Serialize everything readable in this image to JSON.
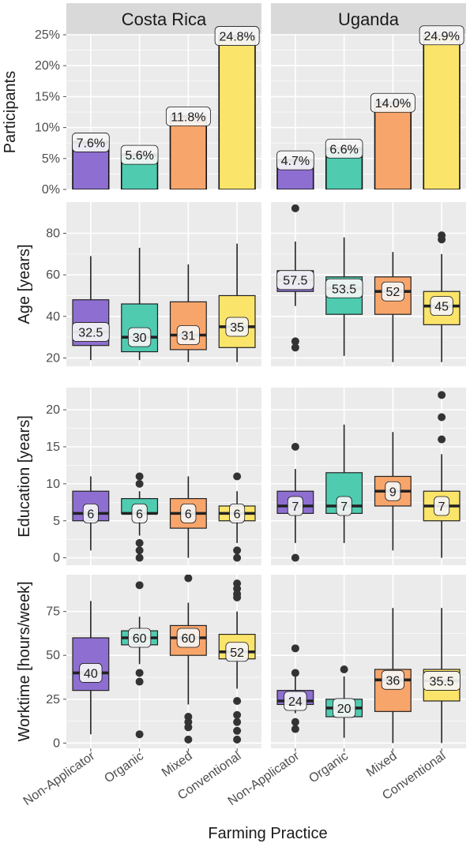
{
  "chart_data": {
    "type": "bar+box",
    "xlabel": "Farming Practice",
    "categories": [
      "Non-Applicator",
      "Organic",
      "Mixed",
      "Conventional"
    ],
    "facets": [
      "Costa Rica",
      "Uganda"
    ],
    "colors": [
      "#8e6fd1",
      "#4fcbb0",
      "#f8a56b",
      "#fbe46a"
    ],
    "rows": [
      {
        "id": "participants",
        "type": "bar",
        "ylabel": "Participants",
        "ylim": [
          0,
          25
        ],
        "yticks": [
          0,
          5,
          10,
          15,
          20,
          25
        ],
        "ytick_labels": [
          "0%",
          "5%",
          "10%",
          "15%",
          "20%",
          "25%"
        ],
        "facets": [
          {
            "name": "Costa Rica",
            "values": [
              7.6,
              5.6,
              11.8,
              24.8
            ],
            "labels": [
              "7.6%",
              "5.6%",
              "11.8%",
              "24.8%"
            ]
          },
          {
            "name": "Uganda",
            "values": [
              4.7,
              6.6,
              14.0,
              24.9
            ],
            "labels": [
              "4.7%",
              "6.6%",
              "14.0%",
              "24.9%"
            ]
          }
        ]
      },
      {
        "id": "age",
        "type": "box",
        "ylabel": "Age [years]",
        "ylim": [
          16,
          95
        ],
        "yticks": [
          20,
          40,
          60,
          80
        ],
        "ytick_labels": [
          "20",
          "40",
          "60",
          "80"
        ],
        "facets": [
          {
            "name": "Costa Rica",
            "boxes": [
              {
                "min": 19,
                "q1": 26,
                "median": 32.5,
                "q3": 48,
                "max": 69,
                "outliers": [],
                "label": "32.5"
              },
              {
                "min": 19,
                "q1": 23,
                "median": 30,
                "q3": 46,
                "max": 73,
                "outliers": [],
                "label": "30"
              },
              {
                "min": 18,
                "q1": 24,
                "median": 31,
                "q3": 47,
                "max": 65,
                "outliers": [],
                "label": "31"
              },
              {
                "min": 18,
                "q1": 25,
                "median": 35,
                "q3": 50,
                "max": 75,
                "outliers": [],
                "label": "35"
              }
            ]
          },
          {
            "name": "Uganda",
            "boxes": [
              {
                "min": 45,
                "q1": 52,
                "median": 57.5,
                "q3": 62,
                "max": 76,
                "outliers": [
                  92,
                  28,
                  25
                ],
                "label": "57.5"
              },
              {
                "min": 21,
                "q1": 41,
                "median": 53.5,
                "q3": 59,
                "max": 78,
                "outliers": [],
                "label": "53.5"
              },
              {
                "min": 18,
                "q1": 41,
                "median": 52,
                "q3": 59,
                "max": 71,
                "outliers": [],
                "label": "52"
              },
              {
                "min": 18,
                "q1": 36,
                "median": 45,
                "q3": 52,
                "max": 70,
                "outliers": [
                  79,
                  77
                ],
                "label": "45"
              }
            ]
          }
        ]
      },
      {
        "id": "education",
        "type": "box",
        "ylabel": "Education [years]",
        "ylim": [
          -1,
          23
        ],
        "yticks": [
          0,
          5,
          10,
          15,
          20
        ],
        "ytick_labels": [
          "0",
          "5",
          "10",
          "15",
          "20"
        ],
        "facets": [
          {
            "name": "Costa Rica",
            "boxes": [
              {
                "min": 1,
                "q1": 5,
                "median": 6,
                "q3": 9,
                "max": 11,
                "outliers": [],
                "label": "6"
              },
              {
                "min": 3,
                "q1": 6,
                "median": 6,
                "q3": 8,
                "max": 9,
                "outliers": [
                  11,
                  10,
                  2,
                  1,
                  0
                ],
                "label": "6"
              },
              {
                "min": 0,
                "q1": 4,
                "median": 6,
                "q3": 8,
                "max": 11,
                "outliers": [],
                "label": "6"
              },
              {
                "min": 2,
                "q1": 5,
                "median": 6,
                "q3": 7,
                "max": 9,
                "outliers": [
                  11,
                  1,
                  0
                ],
                "label": "6"
              }
            ]
          },
          {
            "name": "Uganda",
            "boxes": [
              {
                "min": 2,
                "q1": 6,
                "median": 7,
                "q3": 9,
                "max": 12,
                "outliers": [
                  15,
                  0
                ],
                "label": "7"
              },
              {
                "min": 2,
                "q1": 6,
                "median": 7,
                "q3": 11.5,
                "max": 18,
                "outliers": [],
                "label": "7"
              },
              {
                "min": 1,
                "q1": 7,
                "median": 9,
                "q3": 11,
                "max": 17,
                "outliers": [],
                "label": "9"
              },
              {
                "min": 0,
                "q1": 5,
                "median": 7,
                "q3": 9,
                "max": 14,
                "outliers": [
                  22,
                  19,
                  16
                ],
                "label": "7"
              }
            ]
          }
        ]
      },
      {
        "id": "worktime",
        "type": "box",
        "ylabel": "Worktime [hours/week]",
        "ylim": [
          -3,
          96
        ],
        "yticks": [
          0,
          25,
          50,
          75
        ],
        "ytick_labels": [
          "0",
          "25",
          "50",
          "75"
        ],
        "facets": [
          {
            "name": "Costa Rica",
            "boxes": [
              {
                "min": 5,
                "q1": 30,
                "median": 40,
                "q3": 60,
                "max": 81,
                "outliers": [],
                "label": "40"
              },
              {
                "min": 45,
                "q1": 56,
                "median": 60,
                "q3": 64,
                "max": 72,
                "outliers": [
                  90,
                  40,
                  35,
                  5
                ],
                "label": "60"
              },
              {
                "min": 22,
                "q1": 50,
                "median": 60,
                "q3": 67,
                "max": 80,
                "outliers": [
                  94,
                  15,
                  12,
                  9,
                  2
                ],
                "label": "60"
              },
              {
                "min": 31,
                "q1": 48,
                "median": 52,
                "q3": 62,
                "max": 75,
                "outliers": [
                  91,
                  88,
                  85,
                  83,
                  24,
                  16,
                  12,
                  7,
                  2
                ],
                "label": "52"
              }
            ]
          },
          {
            "name": "Uganda",
            "boxes": [
              {
                "min": 17,
                "q1": 22,
                "median": 24,
                "q3": 30,
                "max": 38,
                "outliers": [
                  54,
                  40,
                  12,
                  8
                ],
                "label": "24"
              },
              {
                "min": 3,
                "q1": 15,
                "median": 20,
                "q3": 25,
                "max": 38,
                "outliers": [
                  42
                ],
                "label": "20"
              },
              {
                "min": 0,
                "q1": 18,
                "median": 36,
                "q3": 42,
                "max": 77,
                "outliers": [],
                "label": "36"
              },
              {
                "min": 0,
                "q1": 24,
                "median": 35.5,
                "q3": 42,
                "max": 77,
                "outliers": [],
                "label": "35.5"
              }
            ]
          }
        ]
      }
    ]
  }
}
